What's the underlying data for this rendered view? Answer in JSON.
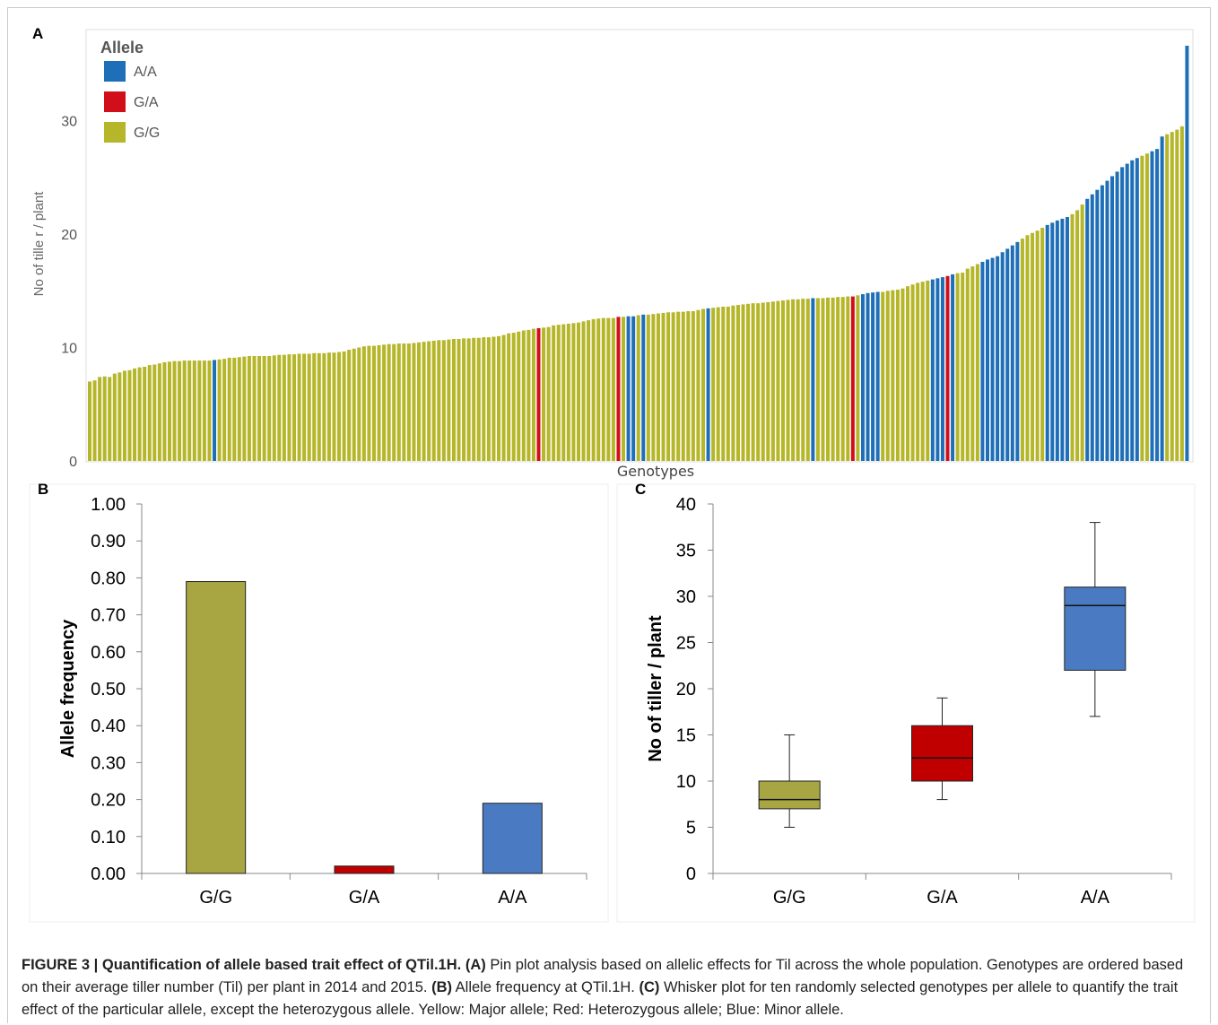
{
  "colors": {
    "GG": "#b5b629",
    "GA": "#d10f1a",
    "AA": "#1e6fb8",
    "GG_bar": "#a8a642",
    "GA_bar": "#c00000",
    "AA_bar": "#4a7bc2"
  },
  "panel_labels": {
    "a": "A",
    "b": "B",
    "c": "C"
  },
  "chart_data": [
    {
      "type": "bar",
      "panel": "A",
      "xlabel": "Genotypes",
      "ylabel": "No of tille r / plant",
      "ylim": [
        0,
        37
      ],
      "yticks": [
        0,
        10,
        20,
        30
      ],
      "legend_title": "Allele",
      "legend": [
        "A/A",
        "G/A",
        "G/G"
      ],
      "legend_position": "top-left",
      "bar_alleles": "GGGGGGGGGGGGGGGGGGGGGGGGGAGGGGGGGGGGGGGGGGGGGGGGGGGGGGGGGGGGGGGGGGGGGGGGGGGGGGGGGGGGGGGGGGHGGGGGGGGGGGGGGGHGAAGAGGGGGGGGGGGGAGGGGGGGGGGGGGGGGGGGGAGGGGGGGHGAAAAGGGGGGGGGGAAAHAGGGGGAAAAAAAAGGGGGAAAAAGGGAAAAAAAAAAAGGAAAGGGGAAGGGA",
      "allele_codes": {
        "G": "G/G",
        "H": "G/A",
        "A": "A/A"
      },
      "values": [
        7.0,
        7.1,
        7.4,
        7.45,
        7.4,
        7.7,
        7.8,
        7.95,
        8.0,
        8.15,
        8.25,
        8.3,
        8.45,
        8.5,
        8.6,
        8.7,
        8.75,
        8.8,
        8.8,
        8.85,
        8.85,
        8.85,
        8.85,
        8.85,
        8.85,
        8.9,
        8.95,
        9.0,
        9.1,
        9.1,
        9.15,
        9.2,
        9.25,
        9.25,
        9.25,
        9.25,
        9.25,
        9.3,
        9.35,
        9.35,
        9.4,
        9.4,
        9.45,
        9.45,
        9.45,
        9.5,
        9.5,
        9.5,
        9.55,
        9.55,
        9.6,
        9.65,
        9.8,
        9.9,
        10.0,
        10.1,
        10.15,
        10.15,
        10.2,
        10.25,
        10.3,
        10.3,
        10.35,
        10.35,
        10.35,
        10.4,
        10.45,
        10.5,
        10.55,
        10.6,
        10.65,
        10.65,
        10.7,
        10.75,
        10.75,
        10.8,
        10.8,
        10.85,
        10.85,
        10.9,
        10.9,
        10.95,
        11.0,
        11.1,
        11.25,
        11.3,
        11.4,
        11.5,
        11.55,
        11.65,
        11.7,
        11.75,
        11.8,
        11.95,
        12.0,
        12.05,
        12.1,
        12.15,
        12.2,
        12.3,
        12.4,
        12.5,
        12.55,
        12.6,
        12.6,
        12.6,
        12.7,
        12.7,
        12.75,
        12.75,
        12.85,
        12.9,
        12.9,
        12.95,
        13.0,
        13.05,
        13.1,
        13.1,
        13.15,
        13.15,
        13.2,
        13.2,
        13.3,
        13.4,
        13.45,
        13.5,
        13.55,
        13.6,
        13.6,
        13.7,
        13.75,
        13.8,
        13.85,
        13.9,
        13.9,
        13.95,
        14.0,
        14.05,
        14.1,
        14.15,
        14.2,
        14.25,
        14.25,
        14.3,
        14.3,
        14.35,
        14.35,
        14.35,
        14.4,
        14.4,
        14.45,
        14.45,
        14.5,
        14.5,
        14.6,
        14.7,
        14.8,
        14.85,
        14.9,
        14.9,
        15.0,
        15.05,
        15.1,
        15.2,
        15.4,
        15.55,
        15.7,
        15.8,
        15.9,
        16.0,
        16.1,
        16.2,
        16.3,
        16.45,
        16.55,
        16.6,
        16.95,
        17.15,
        17.35,
        17.55,
        17.75,
        17.9,
        18.05,
        18.4,
        18.7,
        19.0,
        19.3,
        19.6,
        19.9,
        20.1,
        20.3,
        20.55,
        20.8,
        21.0,
        21.2,
        21.35,
        21.5,
        21.75,
        22.1,
        22.6,
        23.1,
        23.5,
        23.9,
        24.3,
        24.7,
        25.1,
        25.5,
        25.9,
        26.2,
        26.5,
        26.7,
        26.9,
        27.1,
        27.3,
        27.5,
        28.6,
        28.8,
        29.0,
        29.2,
        29.5,
        36.6
      ]
    },
    {
      "type": "bar",
      "panel": "B",
      "categories": [
        "G/G",
        "G/A",
        "A/A"
      ],
      "values": [
        0.79,
        0.02,
        0.19
      ],
      "ylabel": "Allele frequency",
      "ylim": [
        0,
        1.0
      ],
      "yticks": [
        "0.00",
        "0.10",
        "0.20",
        "0.30",
        "0.40",
        "0.50",
        "0.60",
        "0.70",
        "0.80",
        "0.90",
        "1.00"
      ]
    },
    {
      "type": "box",
      "panel": "C",
      "categories": [
        "G/G",
        "G/A",
        "A/A"
      ],
      "boxes": [
        {
          "min": 5,
          "q1": 7,
          "median": 8,
          "q3": 10,
          "max": 15
        },
        {
          "min": 8,
          "q1": 10,
          "median": 12.5,
          "q3": 16,
          "max": 19
        },
        {
          "min": 17,
          "q1": 22,
          "median": 29,
          "q3": 31,
          "max": 38
        }
      ],
      "ylabel": "No of tiller / plant",
      "ylim": [
        0,
        40
      ],
      "yticks": [
        "0",
        "5",
        "10",
        "15",
        "20",
        "25",
        "30",
        "35",
        "40"
      ]
    }
  ],
  "caption": {
    "title": "FIGURE 3 | Quantification of allele based trait effect of QTil.1H.",
    "a_label": "(A)",
    "a_text": " Pin plot analysis based on allelic effects for Til across the whole population. Genotypes are ordered based on their average tiller number (Til) per plant in 2014 and 2015. ",
    "b_label": "(B)",
    "b_text": " Allele frequency at QTil.1H. ",
    "c_label": "(C)",
    "c_text": " Whisker plot for ten randomly selected genotypes per allele to quantify the trait effect of the particular allele, except the heterozygous allele. Yellow: Major allele; Red: Heterozygous allele; Blue: Minor allele."
  }
}
